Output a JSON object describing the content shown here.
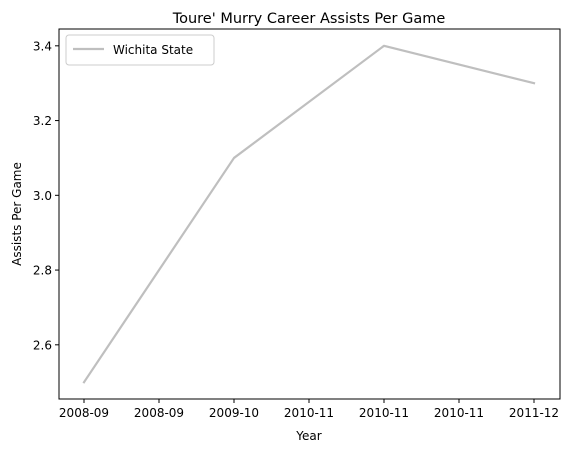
{
  "chart_data": {
    "type": "line",
    "title": "Toure' Murry Career Assists Per Game",
    "xlabel": "Year",
    "ylabel": "Assists Per Game",
    "x_tick_labels": [
      "2008-09",
      "2008-09",
      "2009-10",
      "2010-11",
      "2010-11",
      "2010-11",
      "2011-12"
    ],
    "series": [
      {
        "name": "Wichita State",
        "color": "#bfbfbf",
        "points": [
          {
            "x": "2008-09",
            "y": 2.5
          },
          {
            "x": "2009-10",
            "y": 3.1
          },
          {
            "x": "2010-11",
            "y": 3.4
          },
          {
            "x": "2011-12",
            "y": 3.3
          }
        ]
      }
    ],
    "yticks": [
      2.6,
      2.8,
      3.0,
      3.2,
      3.4
    ],
    "ylim": [
      2.455,
      3.445
    ],
    "grid": false,
    "legend_position": "upper left"
  }
}
